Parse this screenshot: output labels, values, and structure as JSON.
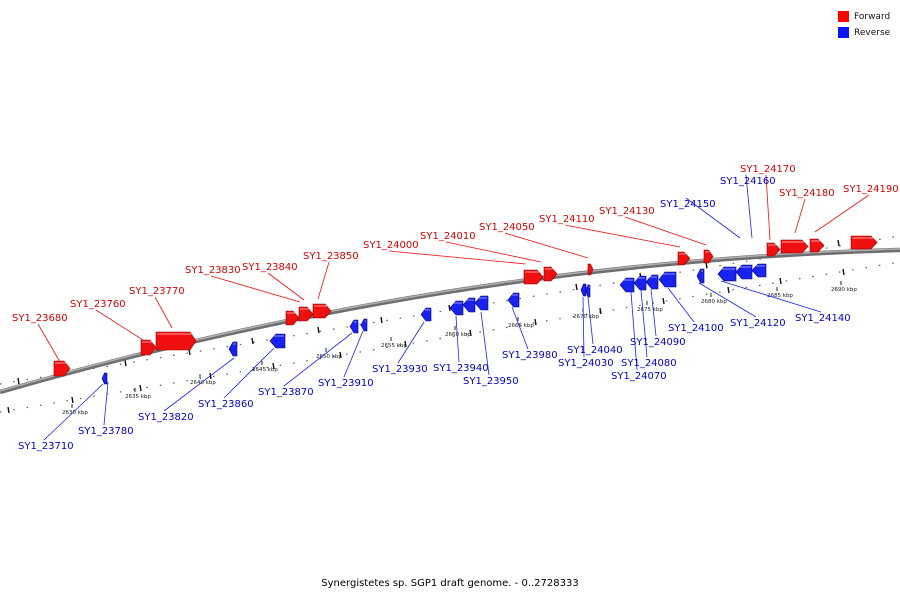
{
  "caption": "Synergistetes sp. SGP1 draft genome. - 0..2728333",
  "legend": [
    {
      "label": "Forward",
      "color": "#ff0000"
    },
    {
      "label": "Reverse",
      "color": "#0a14ff"
    }
  ],
  "colors": {
    "forward": "#f01010",
    "reverse": "#1a22f0",
    "backbone": "#8a8a8a",
    "forward_label": "#d40000",
    "reverse_label": "#0000c8"
  },
  "ticks": [
    "2630 kbp",
    "2635 kbp",
    "2640 kbp",
    "2645 kbp",
    "2650 kbp",
    "2655 kbp",
    "2660 kbp",
    "2665 kbp",
    "2670 kbp",
    "2675 kbp",
    "2680 kbp",
    "2685 kbp",
    "2690 kbp"
  ],
  "forward_genes": [
    "SY1_23680",
    "SY1_23760",
    "SY1_23770",
    "SY1_23830",
    "SY1_23840",
    "SY1_23850",
    "SY1_24000",
    "SY1_24010",
    "SY1_24050",
    "SY1_24110",
    "SY1_24130",
    "SY1_24170",
    "SY1_24180",
    "SY1_24190"
  ],
  "reverse_genes": [
    "SY1_23710",
    "SY1_23780",
    "SY1_23820",
    "SY1_23860",
    "SY1_23870",
    "SY1_23910",
    "SY1_23930",
    "SY1_23940",
    "SY1_23950",
    "SY1_23980",
    "SY1_24030",
    "SY1_24040",
    "SY1_24070",
    "SY1_24080",
    "SY1_24090",
    "SY1_24100",
    "SY1_24120",
    "SY1_24140",
    "SY1_24150",
    "SY1_24160"
  ]
}
